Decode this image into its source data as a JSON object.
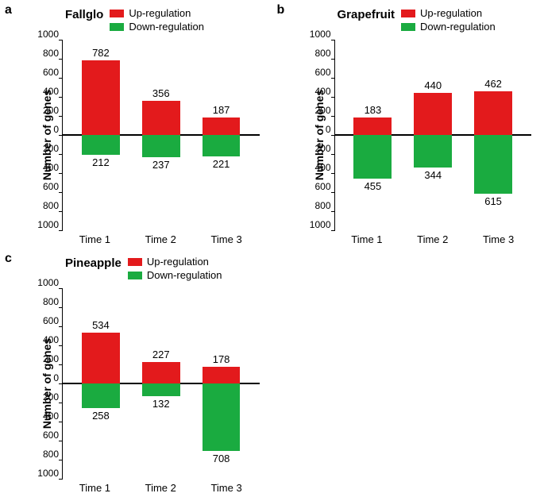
{
  "colors": {
    "up": "#e31a1c",
    "down": "#1aab40",
    "axis": "#000000",
    "bg": "#ffffff"
  },
  "axis": {
    "ymax": 1000,
    "ytick_step": 200,
    "ylabel": "Number of genes",
    "ticks": [
      1000,
      800,
      600,
      400,
      200,
      0,
      200,
      400,
      600,
      800,
      1000
    ]
  },
  "legend": {
    "up": "Up-regulation",
    "down": "Down-regulation"
  },
  "categories": [
    "Time 1",
    "Time 2",
    "Time 3"
  ],
  "panels": [
    {
      "letter": "a",
      "title": "Fallglo",
      "up": [
        782,
        356,
        187
      ],
      "down": [
        212,
        237,
        221
      ]
    },
    {
      "letter": "b",
      "title": "Grapefruit",
      "up": [
        183,
        440,
        462
      ],
      "down": [
        455,
        344,
        615
      ]
    },
    {
      "letter": "c",
      "title": "Pineapple",
      "up": [
        534,
        227,
        178
      ],
      "down": [
        258,
        132,
        708
      ]
    }
  ]
}
